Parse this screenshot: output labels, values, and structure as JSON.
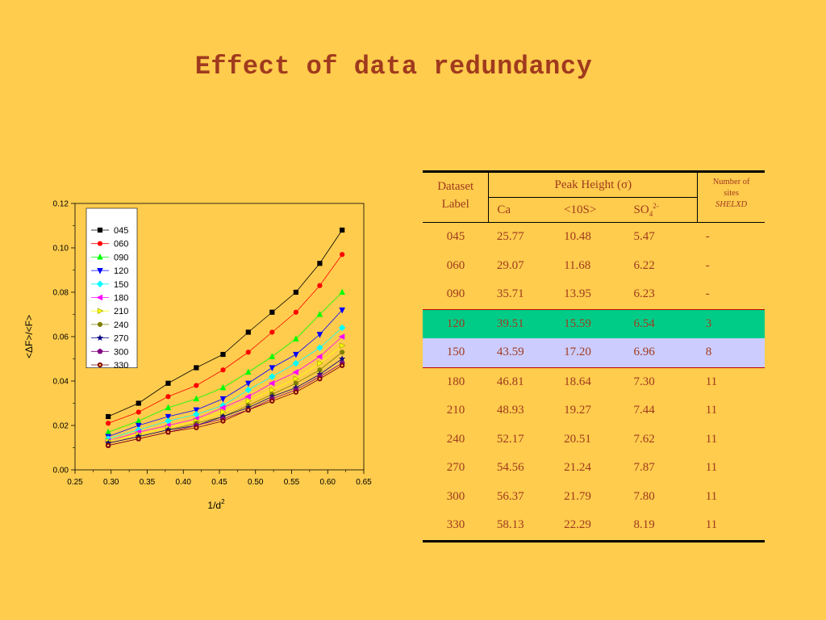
{
  "title": "Effect of data redundancy",
  "chart_data": {
    "type": "line",
    "xlabel": "1/d",
    "xlabel_sup": "2",
    "ylabel": "<ΔF>/<F>",
    "xlim": [
      0.25,
      0.65
    ],
    "ylim": [
      0.0,
      0.12
    ],
    "xticks": [
      "0.25",
      "0.30",
      "0.35",
      "0.40",
      "0.45",
      "0.50",
      "0.55",
      "0.60",
      "0.65"
    ],
    "yticks": [
      "0.00",
      "0.02",
      "0.04",
      "0.06",
      "0.08",
      "0.10",
      "0.12"
    ],
    "grid": false,
    "legend": "top-left",
    "x": [
      0.296,
      0.338,
      0.379,
      0.418,
      0.455,
      0.49,
      0.523,
      0.556,
      0.589,
      0.62
    ],
    "series": [
      {
        "name": "045",
        "color": "#000000",
        "marker": "square",
        "values": [
          0.024,
          0.03,
          0.039,
          0.046,
          0.052,
          0.062,
          0.071,
          0.08,
          0.093,
          0.108
        ]
      },
      {
        "name": "060",
        "color": "#FF0000",
        "marker": "circle",
        "values": [
          0.021,
          0.026,
          0.033,
          0.038,
          0.045,
          0.053,
          0.062,
          0.071,
          0.083,
          0.097
        ]
      },
      {
        "name": "090",
        "color": "#00FF00",
        "marker": "triangle-up",
        "values": [
          0.017,
          0.022,
          0.028,
          0.032,
          0.037,
          0.044,
          0.051,
          0.059,
          0.07,
          0.08
        ]
      },
      {
        "name": "120",
        "color": "#0000FF",
        "marker": "triangle-down",
        "values": [
          0.015,
          0.02,
          0.024,
          0.027,
          0.032,
          0.039,
          0.046,
          0.052,
          0.061,
          0.072
        ]
      },
      {
        "name": "150",
        "color": "#00FFFF",
        "marker": "diamond",
        "values": [
          0.014,
          0.018,
          0.022,
          0.025,
          0.029,
          0.036,
          0.042,
          0.048,
          0.055,
          0.064
        ]
      },
      {
        "name": "180",
        "color": "#FF00FF",
        "marker": "triangle-left",
        "values": [
          0.013,
          0.017,
          0.02,
          0.023,
          0.028,
          0.033,
          0.039,
          0.044,
          0.051,
          0.06
        ]
      },
      {
        "name": "210",
        "color": "#FFFF00",
        "marker": "triangle-right",
        "values": [
          0.013,
          0.016,
          0.019,
          0.022,
          0.026,
          0.031,
          0.036,
          0.041,
          0.048,
          0.056
        ]
      },
      {
        "name": "240",
        "color": "#808000",
        "marker": "circle",
        "values": [
          0.012,
          0.015,
          0.018,
          0.021,
          0.024,
          0.029,
          0.034,
          0.039,
          0.045,
          0.053
        ]
      },
      {
        "name": "270",
        "color": "#000080",
        "marker": "star",
        "values": [
          0.012,
          0.015,
          0.018,
          0.02,
          0.024,
          0.028,
          0.033,
          0.037,
          0.043,
          0.05
        ]
      },
      {
        "name": "300",
        "color": "#800080",
        "marker": "pentagon",
        "values": [
          0.011,
          0.014,
          0.017,
          0.02,
          0.023,
          0.027,
          0.032,
          0.036,
          0.042,
          0.048
        ]
      },
      {
        "name": "330",
        "color": "#800000",
        "marker": "circle-hollow",
        "values": [
          0.011,
          0.014,
          0.017,
          0.019,
          0.022,
          0.027,
          0.031,
          0.035,
          0.041,
          0.047
        ]
      }
    ]
  },
  "table": {
    "header": {
      "dataset_line1": "Dataset",
      "dataset_line2": "Label",
      "peak_height": "Peak Height (σ)",
      "ca": "Ca",
      "s10": "<10S>",
      "so4_base": "SO",
      "so4_sub": "4",
      "so4_sup": "2-",
      "sites_line1": "Number of",
      "sites_line2": "sites",
      "sites_line3": "SHELXD"
    },
    "rows": [
      {
        "label": "045",
        "ca": "25.77",
        "s10": "10.48",
        "so4": "5.47",
        "sites": "-"
      },
      {
        "label": "060",
        "ca": "29.07",
        "s10": "11.68",
        "so4": "6.22",
        "sites": "-"
      },
      {
        "label": "090",
        "ca": "35.71",
        "s10": "13.95",
        "so4": "6.23",
        "sites": "-"
      },
      {
        "label": "120",
        "ca": "39.51",
        "s10": "15.59",
        "so4": "6.54",
        "sites": "3"
      },
      {
        "label": "150",
        "ca": "43.59",
        "s10": "17.20",
        "so4": "6.96",
        "sites": "8"
      },
      {
        "label": "180",
        "ca": "46.81",
        "s10": "18.64",
        "so4": "7.30",
        "sites": "11"
      },
      {
        "label": "210",
        "ca": "48.93",
        "s10": "19.27",
        "so4": "7.44",
        "sites": "11"
      },
      {
        "label": "240",
        "ca": "52.17",
        "s10": "20.51",
        "so4": "7.62",
        "sites": "11"
      },
      {
        "label": "270",
        "ca": "54.56",
        "s10": "21.24",
        "so4": "7.87",
        "sites": "11"
      },
      {
        "label": "300",
        "ca": "56.37",
        "s10": "21.79",
        "so4": "7.80",
        "sites": "11"
      },
      {
        "label": "330",
        "ca": "58.13",
        "s10": "22.29",
        "so4": "8.19",
        "sites": "11"
      }
    ],
    "highlight_colors": {
      "row_120": "#00CC88",
      "row_150": "#CCCCFF",
      "rule": "#C00000"
    }
  }
}
